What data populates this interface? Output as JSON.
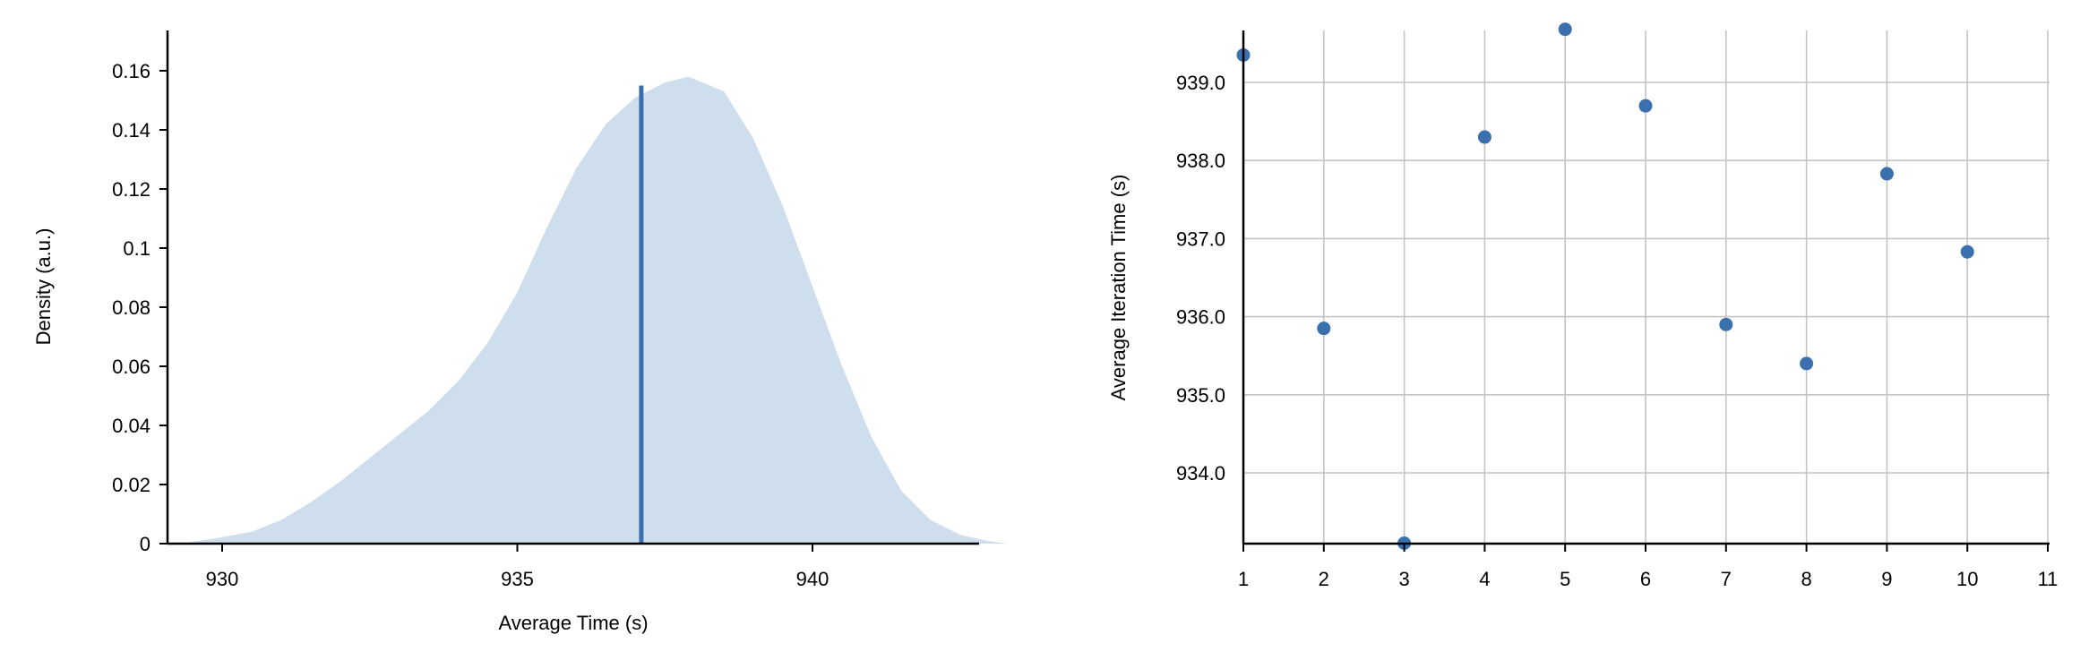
{
  "chart_data": [
    {
      "type": "area",
      "xlabel": "Average Time (s)",
      "ylabel": "Density (a.u.)",
      "xlim": [
        929.0,
        943.5
      ],
      "ylim": [
        0,
        0.17
      ],
      "x_ticks": [
        930,
        935,
        940
      ],
      "x_tick_labels": [
        "930",
        "935",
        "940"
      ],
      "y_ticks": [
        0,
        0.02,
        0.04,
        0.06,
        0.08,
        0.1,
        0.12,
        0.14,
        0.16
      ],
      "y_tick_labels": [
        "0",
        "0.02",
        "0.04",
        "0.06",
        "0.08",
        "0.1",
        "0.12",
        "0.14",
        "0.16"
      ],
      "x": [
        929.3,
        929.8,
        930.5,
        931.0,
        931.5,
        932.0,
        932.5,
        933.0,
        933.5,
        934.0,
        934.5,
        935.0,
        935.5,
        936.0,
        936.5,
        937.0,
        937.5,
        937.9,
        938.5,
        939.0,
        939.5,
        940.0,
        940.5,
        941.0,
        941.5,
        942.0,
        942.5,
        943.0,
        943.3
      ],
      "y": [
        0.0,
        0.0015,
        0.004,
        0.008,
        0.014,
        0.021,
        0.029,
        0.037,
        0.045,
        0.055,
        0.068,
        0.085,
        0.107,
        0.127,
        0.142,
        0.151,
        0.156,
        0.158,
        0.153,
        0.137,
        0.114,
        0.087,
        0.06,
        0.036,
        0.018,
        0.008,
        0.003,
        0.0008,
        0.0
      ],
      "marker_line_x": 937.1,
      "marker_line_y": 0.155,
      "fill_color": "#cfdeec",
      "line_color": "#3a70ad",
      "grid": false
    },
    {
      "type": "scatter",
      "xlabel": "",
      "ylabel": "Average Iteration Time (s)",
      "xlim": [
        1,
        11
      ],
      "ylim": [
        933.1,
        939.7
      ],
      "x_ticks": [
        1,
        2,
        3,
        4,
        5,
        6,
        7,
        8,
        9,
        10,
        11
      ],
      "x_tick_labels": [
        "1",
        "2",
        "3",
        "4",
        "5",
        "6",
        "7",
        "8",
        "9",
        "10",
        "11"
      ],
      "y_ticks": [
        934,
        935,
        936,
        937,
        938,
        939
      ],
      "y_tick_labels": [
        "934.0",
        "935.0",
        "936.0",
        "937.0",
        "938.0",
        "939.0"
      ],
      "x": [
        1,
        2,
        3,
        4,
        5,
        6,
        7,
        8,
        9,
        10
      ],
      "y": [
        939.35,
        935.85,
        933.1,
        938.3,
        939.68,
        938.7,
        935.9,
        935.4,
        937.83,
        936.83
      ],
      "point_color": "#3a70ad",
      "grid": true
    }
  ]
}
